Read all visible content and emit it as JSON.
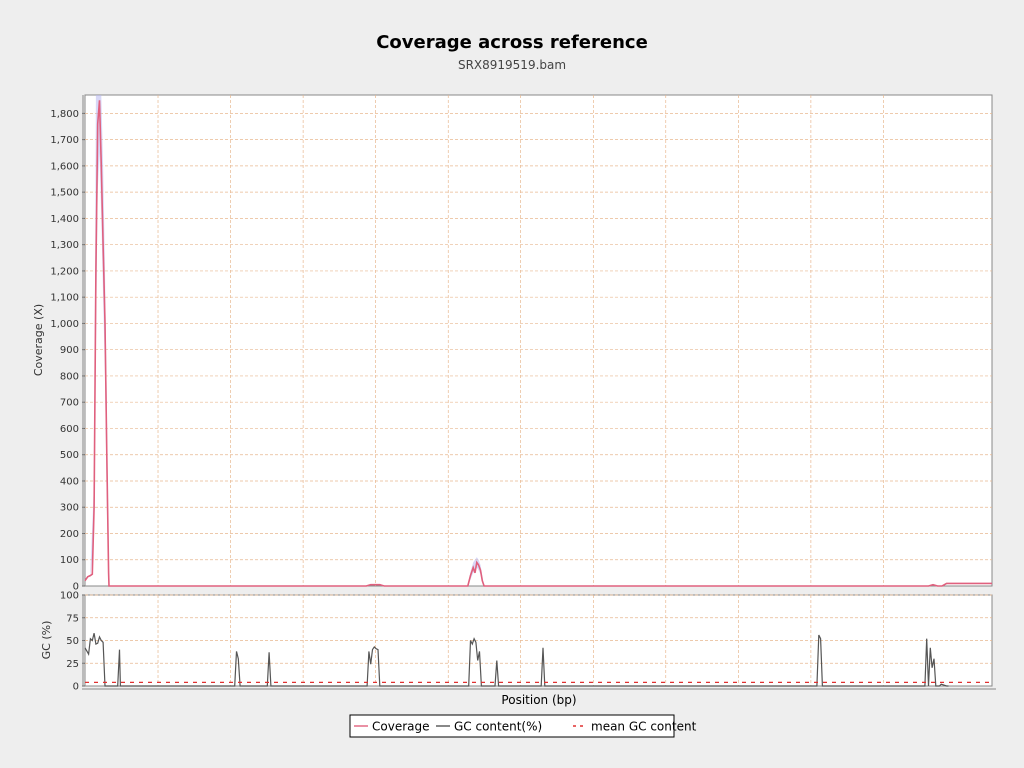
{
  "title": "Coverage across reference",
  "subtitle": "SRX8919519.bam",
  "colors": {
    "coverage": "#e0607e",
    "coverage_band": "#b8b8f0",
    "gc": "#555555",
    "mean_gc": "#e03030",
    "grid": "#e8b890",
    "panel_bg": "#ffffff",
    "page_bg": "#eeeeee"
  },
  "chart_data": [
    {
      "type": "line",
      "panel": "coverage",
      "xlabel": "",
      "ylabel": "Coverage (X)",
      "ylim": [
        0,
        1870
      ],
      "xlim": [
        0,
        1
      ],
      "yticks": [
        0,
        100,
        200,
        300,
        400,
        500,
        600,
        700,
        800,
        900,
        1000,
        1100,
        1200,
        1300,
        1400,
        1500,
        1600,
        1700,
        1800
      ],
      "ytick_labels": [
        "0",
        "100",
        "200",
        "300",
        "400",
        "500",
        "600",
        "700",
        "800",
        "900",
        "1,000",
        "1,100",
        "1,200",
        "1,300",
        "1,400",
        "1,500",
        "1,600",
        "1,700",
        "1,800"
      ],
      "grid": true,
      "series": [
        {
          "name": "Coverage",
          "x": [
            0,
            0.003,
            0.006,
            0.008,
            0.01,
            0.012,
            0.014,
            0.016,
            0.018,
            0.02,
            0.022,
            0.024,
            0.026,
            0.0265,
            0.03,
            0.31,
            0.315,
            0.32,
            0.325,
            0.33,
            0.422,
            0.425,
            0.428,
            0.43,
            0.432,
            0.434,
            0.436,
            0.438,
            0.44,
            0.442,
            0.444,
            0.9,
            0.93,
            0.935,
            0.94,
            0.945,
            0.95,
            1.0
          ],
          "values": [
            20,
            35,
            40,
            45,
            300,
            1200,
            1760,
            1850,
            1600,
            1300,
            1000,
            500,
            50,
            0,
            0,
            0,
            5,
            5,
            5,
            0,
            0,
            40,
            70,
            50,
            90,
            80,
            60,
            20,
            0,
            0,
            0,
            0,
            0,
            5,
            0,
            0,
            10,
            10
          ]
        },
        {
          "name": "coverage band upper",
          "x": [
            0.006,
            0.01,
            0.012,
            0.014,
            0.016,
            0.018,
            0.02,
            0.022,
            0.024,
            0.026,
            0.422,
            0.425,
            0.428,
            0.432,
            0.434,
            0.436,
            0.438,
            0.44
          ],
          "values": [
            60,
            400,
            1870,
            1870,
            1870,
            1870,
            1600,
            1200,
            700,
            80,
            0,
            55,
            90,
            110,
            100,
            80,
            40,
            0
          ]
        },
        {
          "name": "coverage band lower",
          "x": [
            0.006,
            0.01,
            0.012,
            0.014,
            0.016,
            0.018,
            0.02,
            0.022,
            0.024,
            0.026,
            0.422,
            0.425,
            0.428,
            0.432,
            0.434,
            0.436,
            0.438,
            0.44
          ],
          "values": [
            30,
            200,
            900,
            1500,
            1650,
            1400,
            1100,
            800,
            300,
            20,
            0,
            25,
            50,
            70,
            60,
            45,
            10,
            0
          ]
        }
      ]
    },
    {
      "type": "line",
      "panel": "gc",
      "xlabel": "Position (bp)",
      "ylabel": "GC (%)",
      "ylim": [
        0,
        100
      ],
      "xlim": [
        0,
        1
      ],
      "yticks": [
        0,
        25,
        50,
        75,
        100
      ],
      "ytick_labels": [
        "0",
        "25",
        "50",
        "75",
        "100"
      ],
      "grid": true,
      "series": [
        {
          "name": "GC content(%)",
          "x": [
            0,
            0.004,
            0.006,
            0.008,
            0.01,
            0.012,
            0.014,
            0.016,
            0.018,
            0.02,
            0.022,
            0.024,
            0.026,
            0.027,
            0.036,
            0.038,
            0.039,
            0.165,
            0.167,
            0.169,
            0.171,
            0.201,
            0.203,
            0.205,
            0.311,
            0.313,
            0.315,
            0.317,
            0.319,
            0.321,
            0.323,
            0.325,
            0.326,
            0.423,
            0.425,
            0.427,
            0.429,
            0.431,
            0.433,
            0.435,
            0.437,
            0.439,
            0.44,
            0.452,
            0.454,
            0.456,
            0.503,
            0.505,
            0.507,
            0.807,
            0.809,
            0.811,
            0.813,
            0.926,
            0.928,
            0.93,
            0.932,
            0.934,
            0.936,
            0.938,
            0.94,
            0.942,
            0.944,
            0.95,
            0.952
          ],
          "values": [
            42,
            35,
            52,
            50,
            58,
            46,
            47,
            54,
            50,
            48,
            0,
            0,
            0,
            0,
            0,
            40,
            0,
            0,
            38,
            30,
            0,
            0,
            37,
            0,
            0,
            38,
            24,
            40,
            43,
            41,
            40,
            0,
            0,
            0,
            50,
            46,
            52,
            48,
            28,
            38,
            0,
            0,
            0,
            0,
            28,
            0,
            0,
            42,
            0,
            0,
            56,
            52,
            0,
            0,
            52,
            0,
            42,
            20,
            30,
            0,
            0,
            0,
            2,
            0,
            0
          ]
        },
        {
          "name": "mean GC content",
          "x": [
            0,
            1
          ],
          "values": [
            4,
            4
          ]
        }
      ]
    }
  ],
  "legend": {
    "placement": "bottom-center",
    "items": [
      {
        "label": "Coverage",
        "style": "solid",
        "color": "#e0607e"
      },
      {
        "label": "GC content(%)",
        "style": "solid",
        "color": "#555555"
      },
      {
        "label": "mean GC content",
        "style": "dashed",
        "color": "#e03030"
      }
    ]
  }
}
